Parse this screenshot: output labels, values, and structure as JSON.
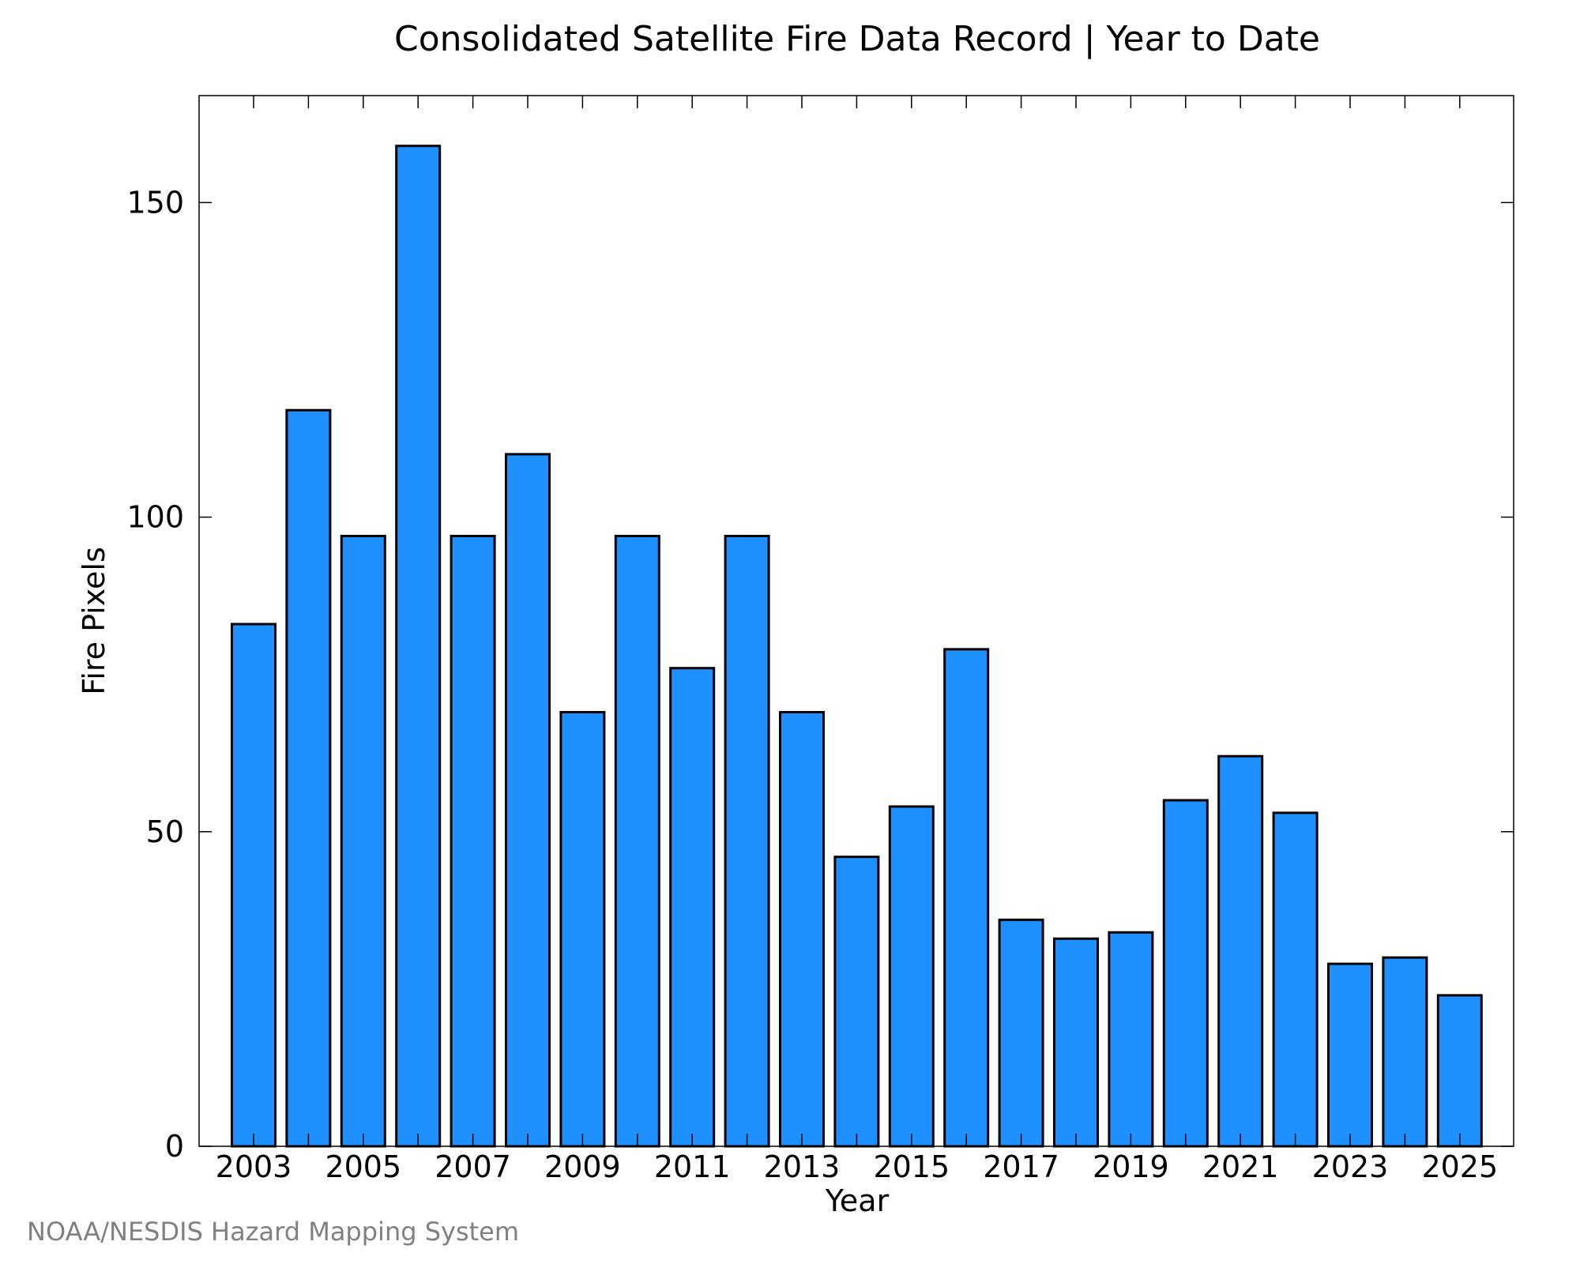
{
  "chart_data": {
    "type": "bar",
    "title": "Consolidated Satellite Fire Data Record | Year to Date",
    "xlabel": "Year",
    "ylabel": "Fire Pixels",
    "categories": [
      "2003",
      "2004",
      "2005",
      "2006",
      "2007",
      "2008",
      "2009",
      "2010",
      "2011",
      "2012",
      "2013",
      "2014",
      "2015",
      "2016",
      "2017",
      "2018",
      "2019",
      "2020",
      "2021",
      "2022",
      "2023",
      "2024",
      "2025"
    ],
    "values": [
      83,
      117,
      97,
      159,
      97,
      110,
      69,
      97,
      76,
      97,
      69,
      46,
      54,
      79,
      36,
      33,
      34,
      55,
      62,
      53,
      29,
      30,
      24
    ],
    "x_tick_labels": [
      "2003",
      "2005",
      "2007",
      "2009",
      "2011",
      "2013",
      "2015",
      "2017",
      "2019",
      "2021",
      "2023",
      "2025"
    ],
    "y_ticks": [
      0,
      50,
      100,
      150
    ],
    "ylim": [
      0,
      167
    ],
    "grid": false,
    "bar_color": "#1e90ff",
    "bar_edge_color": "#000000"
  },
  "footer": {
    "credit": "NOAA/NESDIS Hazard Mapping System"
  }
}
